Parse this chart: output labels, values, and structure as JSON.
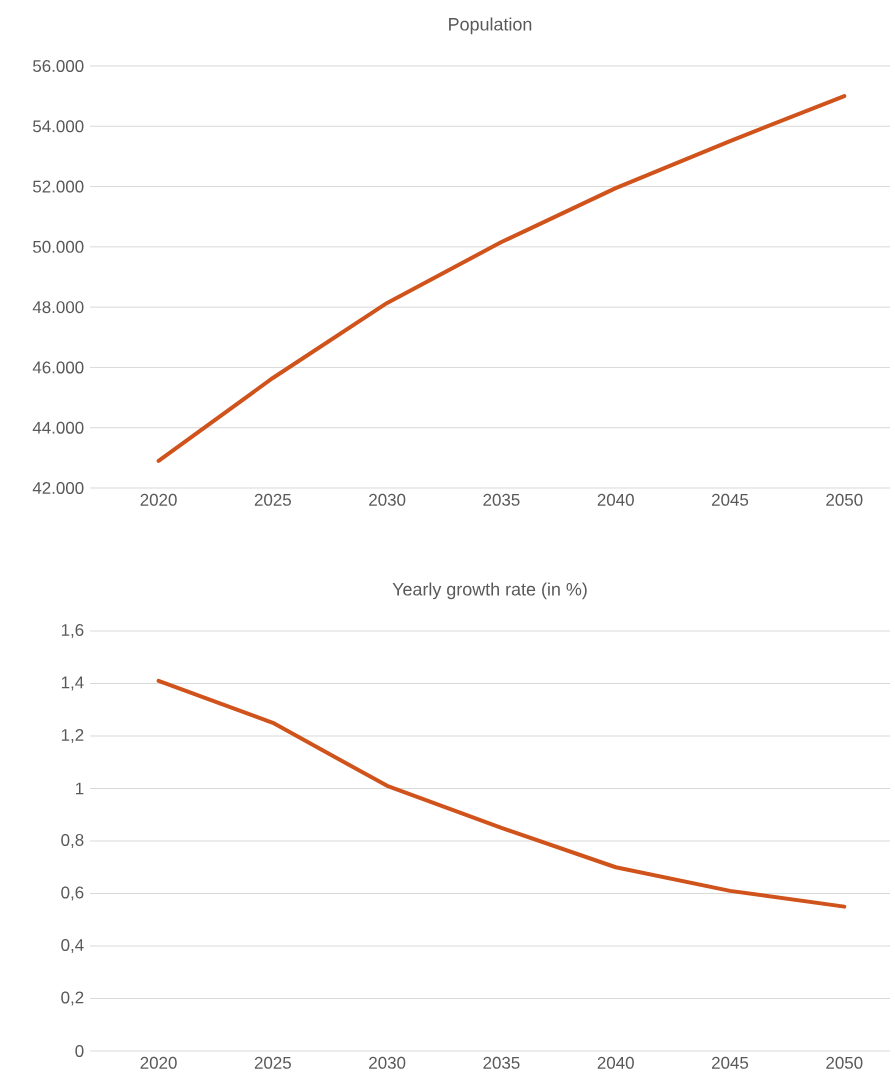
{
  "chart_data": [
    {
      "type": "line",
      "title": "Population",
      "categories": [
        "2020",
        "2025",
        "2030",
        "2035",
        "2040",
        "2045",
        "2050"
      ],
      "series": [
        {
          "color": "#d0531c",
          "values": [
            42900,
            45650,
            48140,
            50160,
            51950,
            53510,
            55000
          ]
        }
      ],
      "ylim": [
        42000,
        56000
      ],
      "yticks": [
        {
          "value": 42000,
          "label": "42.000"
        },
        {
          "value": 44000,
          "label": "44.000"
        },
        {
          "value": 46000,
          "label": "46.000"
        },
        {
          "value": 48000,
          "label": "48.000"
        },
        {
          "value": 50000,
          "label": "50.000"
        },
        {
          "value": 52000,
          "label": "52.000"
        },
        {
          "value": 54000,
          "label": "54.000"
        },
        {
          "value": 56000,
          "label": "56.000"
        }
      ],
      "grid": "y"
    },
    {
      "type": "line",
      "title": "Yearly growth rate (in %)",
      "categories": [
        "2020",
        "2025",
        "2030",
        "2035",
        "2040",
        "2045",
        "2050"
      ],
      "series": [
        {
          "color": "#d0531c",
          "values": [
            1.41,
            1.25,
            1.01,
            0.85,
            0.7,
            0.61,
            0.55
          ]
        }
      ],
      "ylim": [
        0,
        1.6
      ],
      "yticks": [
        0,
        {
          "value": 0.2,
          "label": "0,2"
        },
        {
          "value": 0.4,
          "label": "0,4"
        },
        {
          "value": 0.6,
          "label": "0,6"
        },
        {
          "value": 0.8,
          "label": "0,8"
        },
        1,
        {
          "value": 1.2,
          "label": "1,2"
        },
        {
          "value": 1.4,
          "label": "1,4"
        },
        {
          "value": 1.6,
          "label": "1,6"
        }
      ],
      "grid": "y"
    }
  ]
}
